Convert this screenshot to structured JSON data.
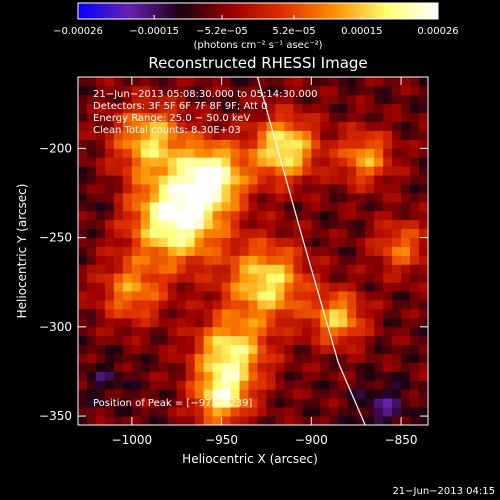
{
  "chart_data": {
    "type": "heatmap",
    "title": "Reconstructed RHESSI Image",
    "xlabel": "Heliocentric X (arcsec)",
    "ylabel": "Heliocentric Y (arcsec)",
    "xlim": [
      -1030,
      -835
    ],
    "ylim": [
      -355,
      -160
    ],
    "x_ticks": [
      {
        "value": -1000,
        "label": "−1000"
      },
      {
        "value": -950,
        "label": "−950"
      },
      {
        "value": -900,
        "label": "−900"
      },
      {
        "value": -850,
        "label": "−850"
      }
    ],
    "y_ticks": [
      {
        "value": -200,
        "label": "−200"
      },
      {
        "value": -250,
        "label": "−250"
      },
      {
        "value": -300,
        "label": "−300"
      },
      {
        "value": -350,
        "label": "−350"
      }
    ],
    "colorbar": {
      "range": [
        -0.00026,
        0.00026
      ],
      "ticks": [
        {
          "value": -0.00026,
          "label": "−0.00026"
        },
        {
          "value": -0.00015,
          "label": "−0.00015"
        },
        {
          "value": -5.2e-05,
          "label": "−5.2e−05"
        },
        {
          "value": 5.2e-05,
          "label": "5.2e−05"
        },
        {
          "value": 0.00015,
          "label": "0.00015"
        },
        {
          "value": 0.00026,
          "label": "0.00026"
        }
      ],
      "unit": "(photons cm⁻² s⁻¹ asec⁻²)",
      "colors": [
        "#0000ff",
        "#6a1fb0",
        "#1a0010",
        "#9b0000",
        "#e03000",
        "#ff9000",
        "#ffff70",
        "#ffffff"
      ]
    },
    "info_lines": [
      "21−Jun−2013 05:08:30.000 to 05:14:30.000",
      "Detectors: 3F 5F 6F 7F 8F 9F; Att 0",
      "Energy Range: 25.0 − 50.0 keV",
      "Clean    Total counts: 8.30E+03"
    ],
    "peak_label": "Position of Peak = [−975,−239]",
    "peak": [
      -975,
      -239
    ],
    "limb_curve": [
      [
        -930,
        -160
      ],
      [
        -905,
        -250
      ],
      [
        -885,
        -320
      ],
      [
        -870,
        -355
      ]
    ],
    "hot_spots": [
      {
        "x": -975,
        "y": -239,
        "r": 25,
        "v": 0.00026
      },
      {
        "x": -955,
        "y": -215,
        "r": 18,
        "v": 0.00022
      },
      {
        "x": -915,
        "y": -200,
        "r": 18,
        "v": 0.0002
      },
      {
        "x": -925,
        "y": -275,
        "r": 22,
        "v": 0.00018
      },
      {
        "x": -990,
        "y": -195,
        "r": 20,
        "v": 0.00015
      },
      {
        "x": -945,
        "y": -315,
        "r": 20,
        "v": 0.00019
      },
      {
        "x": -885,
        "y": -295,
        "r": 15,
        "v": 0.00014
      },
      {
        "x": -1000,
        "y": -280,
        "r": 18,
        "v": 0.0001
      },
      {
        "x": -950,
        "y": -340,
        "r": 15,
        "v": 0.00017
      },
      {
        "x": -870,
        "y": -205,
        "r": 15,
        "v": 0.00012
      },
      {
        "x": -850,
        "y": -255,
        "r": 15,
        "v": 8e-05
      },
      {
        "x": -1015,
        "y": -330,
        "r": 12,
        "v": -0.00012
      },
      {
        "x": -860,
        "y": -345,
        "r": 14,
        "v": -0.00015
      },
      {
        "x": -1020,
        "y": -230,
        "r": 12,
        "v": -0.0001
      }
    ]
  },
  "footer": {
    "timestamp": "21−Jun−2013 04:15"
  }
}
